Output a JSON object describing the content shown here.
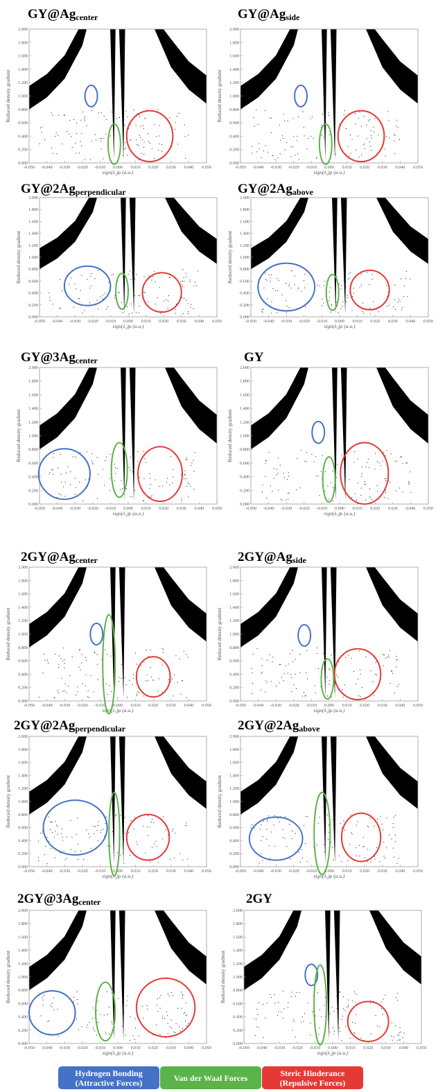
{
  "axis": {
    "xlabel": "sign(λ₂)ρ (a.u.)",
    "ylabel": "Reduced density gradient",
    "x_ticks": [
      "-0.050",
      "-0.040",
      "-0.030",
      "-0.020",
      "-0.010",
      "0.000",
      "0.010",
      "0.020",
      "0.030",
      "0.040",
      "0.050"
    ],
    "y_ticks": [
      "0.000",
      "0.200",
      "0.400",
      "0.600",
      "0.800",
      "1.000",
      "1.200",
      "1.400",
      "1.600",
      "1.800",
      "2.000"
    ]
  },
  "colors": {
    "hydrogen": "#4472c4",
    "vdw": "#5bb349",
    "steric": "#e53935",
    "points": "#000000"
  },
  "legend": [
    {
      "key": "hydrogen",
      "line1": "Hydrogen Bonding",
      "line2": "(Attractive Forces)"
    },
    {
      "key": "vdw",
      "line1": "Van der Waal Forces",
      "line2": ""
    },
    {
      "key": "steric",
      "line1": "Steric Hinderance",
      "line2": "(Repulsive Forces)"
    }
  ],
  "chart_data": [
    {
      "type": "scatter",
      "title_main": "GY@Ag",
      "title_sub": "center",
      "xlim": [
        -0.05,
        0.05
      ],
      "ylim": [
        0,
        2
      ],
      "features": {
        "hydrogen": {
          "cx": -0.015,
          "cy": 1.0,
          "rx": 0.0035,
          "ry": 0.16
        },
        "vdw": {
          "cx": -0.002,
          "cy": 0.28,
          "rx": 0.0035,
          "ry": 0.3
        },
        "steric": {
          "cx": 0.018,
          "cy": 0.4,
          "rx": 0.013,
          "ry": 0.38
        }
      }
    },
    {
      "type": "scatter",
      "title_main": "GY@Ag",
      "title_sub": "side",
      "xlim": [
        -0.05,
        0.05
      ],
      "ylim": [
        0,
        2
      ],
      "features": {
        "hydrogen": {
          "cx": -0.016,
          "cy": 1.0,
          "rx": 0.0035,
          "ry": 0.16
        },
        "vdw": {
          "cx": -0.002,
          "cy": 0.28,
          "rx": 0.0035,
          "ry": 0.3
        },
        "steric": {
          "cx": 0.018,
          "cy": 0.4,
          "rx": 0.013,
          "ry": 0.38
        }
      }
    },
    {
      "type": "scatter",
      "title_main": "GY@2Ag",
      "title_sub": "perpendicular",
      "xlim": [
        -0.05,
        0.05
      ],
      "ylim": [
        0,
        2
      ],
      "features": {
        "hydrogen": {
          "cx": -0.023,
          "cy": 0.52,
          "rx": 0.013,
          "ry": 0.33
        },
        "vdw": {
          "cx": -0.0035,
          "cy": 0.43,
          "rx": 0.0035,
          "ry": 0.3
        },
        "steric": {
          "cx": 0.019,
          "cy": 0.41,
          "rx": 0.011,
          "ry": 0.33
        }
      }
    },
    {
      "type": "scatter",
      "title_main": "GY@2Ag",
      "title_sub": "above",
      "xlim": [
        -0.05,
        0.05
      ],
      "ylim": [
        0,
        2
      ],
      "features": {
        "hydrogen": {
          "cx": -0.03,
          "cy": 0.5,
          "rx": 0.016,
          "ry": 0.4
        },
        "vdw": {
          "cx": -0.004,
          "cy": 0.41,
          "rx": 0.0035,
          "ry": 0.3
        },
        "steric": {
          "cx": 0.017,
          "cy": 0.45,
          "rx": 0.011,
          "ry": 0.33
        }
      }
    },
    {
      "type": "scatter",
      "title_main": "GY@3Ag",
      "title_sub": "center",
      "xlim": [
        -0.05,
        0.05
      ],
      "ylim": [
        0,
        2
      ],
      "features": {
        "hydrogen": {
          "cx": -0.036,
          "cy": 0.44,
          "rx": 0.0145,
          "ry": 0.37
        },
        "vdw": {
          "cx": -0.005,
          "cy": 0.5,
          "rx": 0.0045,
          "ry": 0.4
        },
        "steric": {
          "cx": 0.018,
          "cy": 0.44,
          "rx": 0.0125,
          "ry": 0.4
        }
      }
    },
    {
      "type": "scatter",
      "title_main": "GY",
      "title_sub": "",
      "xlim": [
        -0.05,
        0.05
      ],
      "ylim": [
        0,
        2
      ],
      "features": {
        "hydrogen": {
          "cx": -0.012,
          "cy": 1.05,
          "rx": 0.0035,
          "ry": 0.16
        },
        "vdw": {
          "cx": -0.006,
          "cy": 0.36,
          "rx": 0.0035,
          "ry": 0.33
        },
        "steric": {
          "cx": 0.014,
          "cy": 0.45,
          "rx": 0.0135,
          "ry": 0.45
        }
      }
    },
    {
      "type": "scatter",
      "title_main": "2GY@Ag",
      "title_sub": "center",
      "xlim": [
        -0.05,
        0.05
      ],
      "ylim": [
        0,
        2
      ],
      "features": {
        "hydrogen": {
          "cx": -0.012,
          "cy": 1.0,
          "rx": 0.0035,
          "ry": 0.16
        },
        "vdw": {
          "cx": -0.005,
          "cy": 0.55,
          "rx": 0.0035,
          "ry": 0.74
        },
        "steric": {
          "cx": 0.02,
          "cy": 0.36,
          "rx": 0.0095,
          "ry": 0.3
        }
      }
    },
    {
      "type": "scatter",
      "title_main": "2GY@Ag",
      "title_sub": "side",
      "xlim": [
        -0.05,
        0.05
      ],
      "ylim": [
        0,
        2
      ],
      "features": {
        "hydrogen": {
          "cx": -0.014,
          "cy": 0.98,
          "rx": 0.0035,
          "ry": 0.16
        },
        "vdw": {
          "cx": -0.001,
          "cy": 0.33,
          "rx": 0.0035,
          "ry": 0.3
        },
        "steric": {
          "cx": 0.016,
          "cy": 0.4,
          "rx": 0.013,
          "ry": 0.38
        }
      }
    },
    {
      "type": "scatter",
      "title_main": "2GY@2Ag",
      "title_sub": "perpendicular",
      "xlim": [
        -0.05,
        0.05
      ],
      "ylim": [
        0,
        2
      ],
      "features": {
        "hydrogen": {
          "cx": -0.024,
          "cy": 0.6,
          "rx": 0.018,
          "ry": 0.42
        },
        "vdw": {
          "cx": -0.002,
          "cy": 0.5,
          "rx": 0.003,
          "ry": 0.64
        },
        "steric": {
          "cx": 0.017,
          "cy": 0.45,
          "rx": 0.012,
          "ry": 0.35
        }
      }
    },
    {
      "type": "scatter",
      "title_main": "2GY@2Ag",
      "title_sub": "above",
      "xlim": [
        -0.05,
        0.05
      ],
      "ylim": [
        0,
        2
      ],
      "features": {
        "hydrogen": {
          "cx": -0.03,
          "cy": 0.43,
          "rx": 0.015,
          "ry": 0.33
        },
        "vdw": {
          "cx": -0.004,
          "cy": 0.51,
          "rx": 0.0045,
          "ry": 0.63
        },
        "steric": {
          "cx": 0.018,
          "cy": 0.45,
          "rx": 0.011,
          "ry": 0.37
        }
      }
    },
    {
      "type": "scatter",
      "title_main": "2GY@3Ag",
      "title_sub": "center",
      "xlim": [
        -0.05,
        0.05
      ],
      "ylim": [
        0,
        2
      ],
      "features": {
        "hydrogen": {
          "cx": -0.037,
          "cy": 0.46,
          "rx": 0.013,
          "ry": 0.33
        },
        "vdw": {
          "cx": -0.007,
          "cy": 0.48,
          "rx": 0.0055,
          "ry": 0.44
        },
        "steric": {
          "cx": 0.027,
          "cy": 0.54,
          "rx": 0.0165,
          "ry": 0.44
        }
      }
    },
    {
      "type": "scatter",
      "title_main": "2GY",
      "title_sub": "",
      "xlim": [
        -0.05,
        0.05
      ],
      "ylim": [
        0,
        2
      ],
      "features": {
        "hydrogen": {
          "cx": -0.012,
          "cy": 1.03,
          "rx": 0.0035,
          "ry": 0.16
        },
        "vdw": {
          "cx": -0.007,
          "cy": 0.58,
          "rx": 0.0035,
          "ry": 0.6
        },
        "steric": {
          "cx": 0.02,
          "cy": 0.33,
          "rx": 0.0115,
          "ry": 0.3
        }
      }
    }
  ]
}
